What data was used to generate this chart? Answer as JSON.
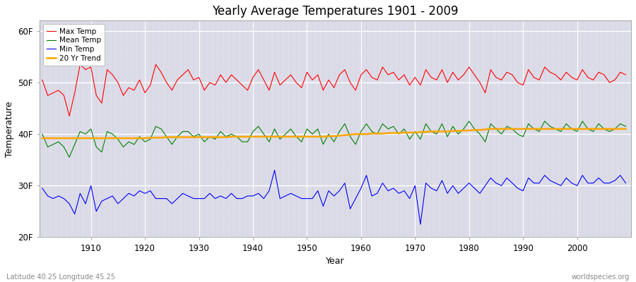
{
  "title": "Yearly Average Temperatures 1901 - 2009",
  "xlabel": "Year",
  "ylabel": "Temperature",
  "lat_lon_label": "Latitude 40.25 Longitude 45.25",
  "watermark": "worldspecies.org",
  "year_start": 1901,
  "year_end": 2009,
  "yticks": [
    20,
    30,
    40,
    50,
    60
  ],
  "ytick_labels": [
    "20F",
    "30F",
    "40F",
    "50F",
    "60F"
  ],
  "xticks": [
    1910,
    1920,
    1930,
    1940,
    1950,
    1960,
    1970,
    1980,
    1990,
    2000
  ],
  "ylim_min": 20,
  "ylim_max": 62,
  "colors": {
    "max_temp": "#ff0000",
    "mean_temp": "#008000",
    "min_temp": "#0000ff",
    "trend": "#ffa500",
    "background": "#dcdce8",
    "fig_background": "#ffffff",
    "grid_major": "#ffffff",
    "grid_minor": "#c8c8d8"
  },
  "legend_labels": [
    "Max Temp",
    "Mean Temp",
    "Min Temp",
    "20 Yr Trend"
  ],
  "max_temp": [
    50.5,
    47.5,
    48.0,
    48.5,
    47.5,
    43.5,
    48.0,
    53.5,
    52.5,
    53.0,
    47.5,
    46.0,
    52.5,
    51.5,
    50.0,
    47.5,
    49.0,
    48.5,
    50.5,
    48.0,
    49.5,
    53.5,
    52.0,
    50.0,
    48.5,
    50.5,
    51.5,
    52.5,
    50.5,
    51.0,
    48.5,
    50.0,
    49.5,
    51.5,
    50.0,
    51.5,
    50.5,
    49.5,
    48.5,
    51.0,
    52.5,
    50.5,
    48.5,
    52.0,
    49.5,
    50.5,
    51.5,
    50.0,
    49.0,
    52.0,
    50.5,
    51.5,
    48.5,
    50.5,
    49.0,
    51.5,
    52.5,
    50.0,
    48.5,
    51.5,
    52.5,
    51.0,
    50.5,
    53.0,
    51.5,
    52.0,
    50.5,
    51.5,
    49.5,
    51.0,
    49.5,
    52.5,
    51.0,
    50.5,
    52.5,
    50.0,
    52.0,
    50.5,
    51.5,
    53.0,
    51.5,
    50.0,
    48.0,
    52.5,
    51.0,
    50.5,
    52.0,
    51.5,
    50.0,
    49.5,
    52.5,
    51.0,
    50.5,
    53.0,
    52.0,
    51.5,
    50.5,
    52.0,
    51.0,
    50.5,
    52.5,
    51.0,
    50.5,
    52.0,
    51.5,
    50.0,
    50.5,
    52.0,
    51.5
  ],
  "mean_temp": [
    40.0,
    37.5,
    38.0,
    38.5,
    37.5,
    35.5,
    38.0,
    40.5,
    40.0,
    41.0,
    37.5,
    36.5,
    40.5,
    40.0,
    39.0,
    37.5,
    38.5,
    38.0,
    39.5,
    38.5,
    39.0,
    41.5,
    41.0,
    39.5,
    38.0,
    39.5,
    40.5,
    40.5,
    39.5,
    40.0,
    38.5,
    39.5,
    39.0,
    40.5,
    39.5,
    40.0,
    39.5,
    38.5,
    38.5,
    40.5,
    41.5,
    40.0,
    38.5,
    41.0,
    39.0,
    40.0,
    41.0,
    39.5,
    38.5,
    41.0,
    40.0,
    41.0,
    38.0,
    40.0,
    38.5,
    40.5,
    42.0,
    39.5,
    38.0,
    40.5,
    42.0,
    40.5,
    40.0,
    42.0,
    41.0,
    41.5,
    40.0,
    41.0,
    39.0,
    40.5,
    39.0,
    42.0,
    40.5,
    40.0,
    42.0,
    39.5,
    41.5,
    40.0,
    41.0,
    42.5,
    41.0,
    40.0,
    38.5,
    42.0,
    41.0,
    40.0,
    41.5,
    41.0,
    40.0,
    39.5,
    42.0,
    41.0,
    40.5,
    42.5,
    41.5,
    41.0,
    40.5,
    42.0,
    41.0,
    40.5,
    42.5,
    41.0,
    40.5,
    42.0,
    41.0,
    40.5,
    41.0,
    42.0,
    41.5
  ],
  "min_temp": [
    29.5,
    28.0,
    27.5,
    28.0,
    27.5,
    26.5,
    24.5,
    28.5,
    26.5,
    30.0,
    25.0,
    27.0,
    27.5,
    28.0,
    26.5,
    27.5,
    28.5,
    28.0,
    29.0,
    28.5,
    29.0,
    27.5,
    27.5,
    27.5,
    26.5,
    27.5,
    28.5,
    28.0,
    27.5,
    27.5,
    27.5,
    28.5,
    27.5,
    28.0,
    27.5,
    28.5,
    27.5,
    27.5,
    28.0,
    28.0,
    28.5,
    27.5,
    29.0,
    33.0,
    27.5,
    28.0,
    28.5,
    28.0,
    27.5,
    27.5,
    27.5,
    29.0,
    26.0,
    29.0,
    28.0,
    29.0,
    30.5,
    25.5,
    27.5,
    29.5,
    32.0,
    28.0,
    28.5,
    30.5,
    29.0,
    29.5,
    28.5,
    29.0,
    27.5,
    30.0,
    22.5,
    30.5,
    29.5,
    29.0,
    31.0,
    28.5,
    30.0,
    28.5,
    29.5,
    30.5,
    29.5,
    28.5,
    30.0,
    31.5,
    30.5,
    30.0,
    31.5,
    30.5,
    29.5,
    29.0,
    31.5,
    30.5,
    30.5,
    32.0,
    31.0,
    30.5,
    30.0,
    31.5,
    30.5,
    30.0,
    32.0,
    30.5,
    30.5,
    31.5,
    30.5,
    30.5,
    31.0,
    32.0,
    30.5
  ],
  "trend": [
    39.2,
    39.2,
    39.2,
    39.2,
    39.2,
    39.2,
    39.2,
    39.2,
    39.2,
    39.2,
    39.2,
    39.2,
    39.2,
    39.2,
    39.2,
    39.2,
    39.2,
    39.2,
    39.2,
    39.2,
    39.3,
    39.3,
    39.3,
    39.4,
    39.4,
    39.4,
    39.4,
    39.4,
    39.4,
    39.4,
    39.4,
    39.4,
    39.4,
    39.4,
    39.4,
    39.5,
    39.5,
    39.5,
    39.5,
    39.5,
    39.5,
    39.5,
    39.5,
    39.5,
    39.5,
    39.5,
    39.5,
    39.5,
    39.5,
    39.5,
    39.5,
    39.5,
    39.5,
    39.6,
    39.6,
    39.7,
    39.8,
    39.9,
    40.0,
    40.0,
    40.0,
    40.1,
    40.1,
    40.1,
    40.2,
    40.2,
    40.2,
    40.3,
    40.3,
    40.3,
    40.4,
    40.4,
    40.5,
    40.5,
    40.5,
    40.5,
    40.6,
    40.6,
    40.7,
    40.7,
    40.8,
    40.8,
    40.9,
    41.0,
    41.0,
    41.0,
    41.0,
    41.0,
    41.0,
    41.0,
    41.0,
    41.0,
    41.0,
    41.0,
    41.0,
    41.0,
    41.0,
    41.0,
    41.0,
    41.0,
    41.0,
    41.0,
    41.0,
    41.0,
    41.0,
    41.0,
    41.0,
    41.0,
    41.0
  ]
}
